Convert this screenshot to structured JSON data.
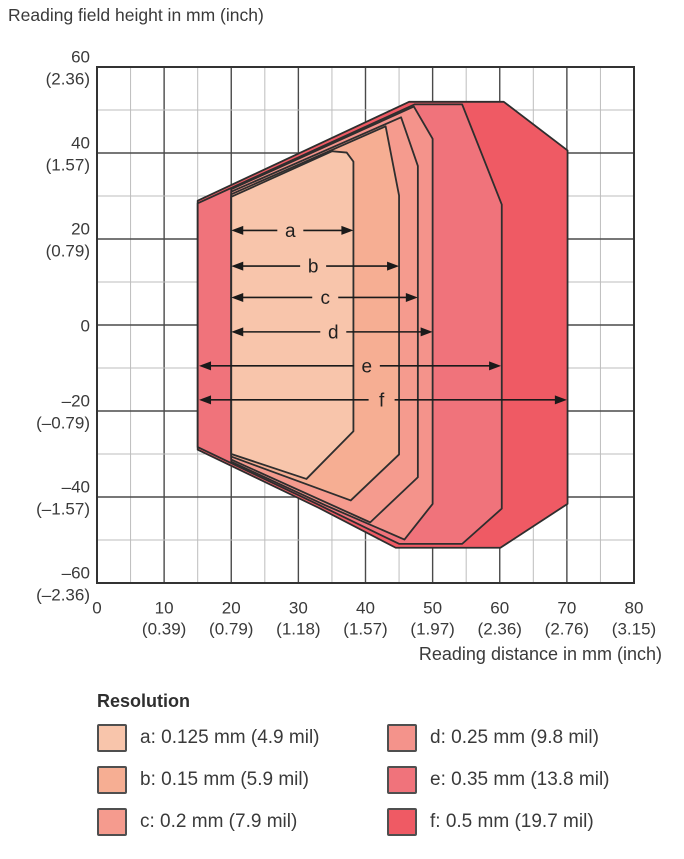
{
  "chart": {
    "title": "Reading field height in mm (inch)",
    "x_axis_title": "Reading distance in mm (inch)"
  },
  "legend": {
    "title": "Resolution",
    "items": [
      {
        "key": "a",
        "label": "a: 0.125 mm (4.9 mil)",
        "color": "#f8c5ab"
      },
      {
        "key": "b",
        "label": "b: 0.15 mm (5.9 mil)",
        "color": "#f6ae93"
      },
      {
        "key": "c",
        "label": "c: 0.2 mm (7.9 mil)",
        "color": "#f59b8e"
      },
      {
        "key": "d",
        "label": "d: 0.25 mm (9.8 mil)",
        "color": "#f4938b"
      },
      {
        "key": "e",
        "label": "e: 0.35 mm (13.8 mil)",
        "color": "#f0737b"
      },
      {
        "key": "f",
        "label": "f: 0.5 mm (19.7 mil)",
        "color": "#ef5a64"
      }
    ]
  },
  "chart_data": {
    "type": "area",
    "subtype": "nested reading-field polygons (scanner reading field diagram)",
    "title": "Reading field height in mm (inch)",
    "xlabel": "Reading distance in mm (inch)",
    "ylabel": "Reading field height in mm (inch)",
    "x_unit": "mm",
    "y_unit": "mm",
    "xlim": [
      0,
      80
    ],
    "ylim": [
      -60,
      60
    ],
    "grid": {
      "x_major_step": 10,
      "x_minor_step": 5,
      "y_major_step": 20,
      "y_minor_step": 10,
      "major_color": "#4a4a4a",
      "minor_color": "#bdbdbd",
      "frame_color": "#333333"
    },
    "x_ticks": [
      {
        "mm": 0,
        "label": "0",
        "inch": ""
      },
      {
        "mm": 10,
        "label": "10",
        "inch": "(0.39)"
      },
      {
        "mm": 20,
        "label": "20",
        "inch": "(0.79)"
      },
      {
        "mm": 30,
        "label": "30",
        "inch": "(1.18)"
      },
      {
        "mm": 40,
        "label": "40",
        "inch": "(1.57)"
      },
      {
        "mm": 50,
        "label": "50",
        "inch": "(1.97)"
      },
      {
        "mm": 60,
        "label": "60",
        "inch": "(2.36)"
      },
      {
        "mm": 70,
        "label": "70",
        "inch": "(2.76)"
      },
      {
        "mm": 80,
        "label": "80",
        "inch": "(3.15)"
      }
    ],
    "y_ticks": [
      {
        "mm": 60,
        "label": "60",
        "inch": "(2.36)"
      },
      {
        "mm": 40,
        "label": "40",
        "inch": "(1.57)"
      },
      {
        "mm": 20,
        "label": "20",
        "inch": "(0.79)"
      },
      {
        "mm": 0,
        "label": "0",
        "inch": ""
      },
      {
        "mm": -20,
        "label": "–20",
        "inch": "(–0.79)"
      },
      {
        "mm": -40,
        "label": "–40",
        "inch": "(–1.57)"
      },
      {
        "mm": -60,
        "label": "–60",
        "inch": "(–2.36)"
      }
    ],
    "series": [
      {
        "name": "f",
        "resolution": "0.5 mm (19.7 mil)",
        "color": "#ef5a64",
        "points": [
          [
            15,
            28.9
          ],
          [
            46.5,
            51.9
          ],
          [
            60.6,
            51.9
          ],
          [
            70.1,
            40.6
          ],
          [
            70.1,
            -41.6
          ],
          [
            60.1,
            -51.8
          ],
          [
            44.5,
            -51.8
          ],
          [
            33,
            -42.5
          ],
          [
            15,
            -29.0
          ]
        ]
      },
      {
        "name": "e",
        "resolution": "0.35 mm (13.8 mil)",
        "color": "#f0737b",
        "points": [
          [
            15,
            28.3
          ],
          [
            47.3,
            51.3
          ],
          [
            54.4,
            51.3
          ],
          [
            60.3,
            28.0
          ],
          [
            60.3,
            -42.7
          ],
          [
            54.4,
            -50.9
          ],
          [
            45.0,
            -50.9
          ],
          [
            33,
            -41.8
          ],
          [
            15,
            -28.4
          ]
        ]
      },
      {
        "name": "d",
        "resolution": "0.25 mm (9.8 mil)",
        "color": "#f4938b",
        "points": [
          [
            20,
            31.6
          ],
          [
            47.2,
            50.8
          ],
          [
            50,
            43.3
          ],
          [
            50,
            -41.6
          ],
          [
            45.8,
            -49.9
          ],
          [
            34,
            -41.9
          ],
          [
            20,
            -31.8
          ]
        ]
      },
      {
        "name": "c",
        "resolution": "0.2 mm (7.9 mil)",
        "color": "#f59b8e",
        "points": [
          [
            20,
            31.0
          ],
          [
            45.3,
            48.3
          ],
          [
            47.8,
            37.0
          ],
          [
            47.8,
            -35.4
          ],
          [
            40.7,
            -45.9
          ],
          [
            20,
            -31.3
          ]
        ]
      },
      {
        "name": "b",
        "resolution": "0.15 mm (5.9 mil)",
        "color": "#f6ae93",
        "points": [
          [
            20,
            30.4
          ],
          [
            43.0,
            46.2
          ],
          [
            45.0,
            30.1
          ],
          [
            45.0,
            -30.1
          ],
          [
            37.8,
            -40.8
          ],
          [
            20,
            -30.6
          ]
        ]
      },
      {
        "name": "a",
        "resolution": "0.125 mm (4.9 mil)",
        "color": "#f8c5ab",
        "points": [
          [
            20,
            29.8
          ],
          [
            35.0,
            40.4
          ],
          [
            37.2,
            40.1
          ],
          [
            38.2,
            38.0
          ],
          [
            38.2,
            -24.7
          ],
          [
            31.2,
            -35.8
          ],
          [
            20,
            -30.0
          ]
        ]
      }
    ],
    "dimension_arrows": [
      {
        "label": "a",
        "y": 22.0,
        "x1": 20.0,
        "x2": 38.2,
        "label_x": 28.8
      },
      {
        "label": "b",
        "y": 13.7,
        "x1": 20.0,
        "x2": 45.0,
        "label_x": 32.2
      },
      {
        "label": "c",
        "y": 6.4,
        "x1": 20.0,
        "x2": 47.8,
        "label_x": 34.0
      },
      {
        "label": "d",
        "y": -1.6,
        "x1": 20.0,
        "x2": 50.0,
        "label_x": 35.2
      },
      {
        "label": "e",
        "y": -9.5,
        "x1": 15.2,
        "x2": 60.2,
        "label_x": 40.2
      },
      {
        "label": "f",
        "y": -17.4,
        "x1": 15.2,
        "x2": 70.0,
        "label_x": 42.4
      }
    ]
  }
}
